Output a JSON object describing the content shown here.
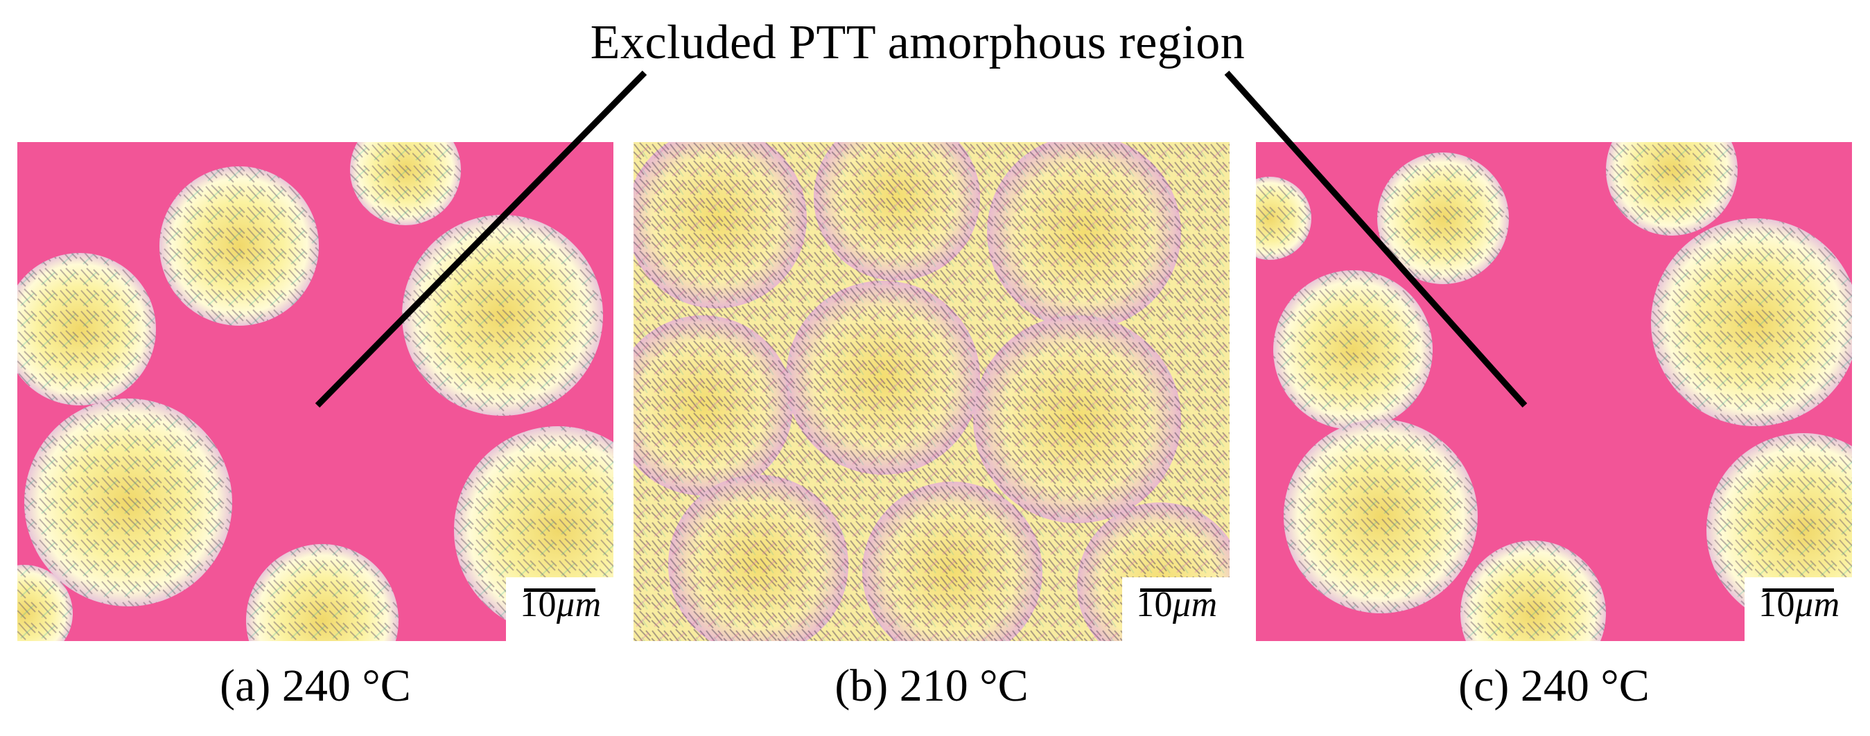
{
  "annotation": "Excluded PTT amorphous region",
  "panels": [
    {
      "caption": "(a) 240 °C",
      "scale_number": "10",
      "scale_unit": "μm"
    },
    {
      "caption": "(b) 210 °C",
      "scale_number": "10",
      "scale_unit": "μm"
    },
    {
      "caption": "(c) 240 °C",
      "scale_number": "10",
      "scale_unit": "μm"
    }
  ],
  "colors": {
    "amorphous_background": "#f25597",
    "spherulite_fill": "#f7ec8a",
    "spherulite_highlight": "#fffbd6",
    "leader_line": "#000000"
  }
}
